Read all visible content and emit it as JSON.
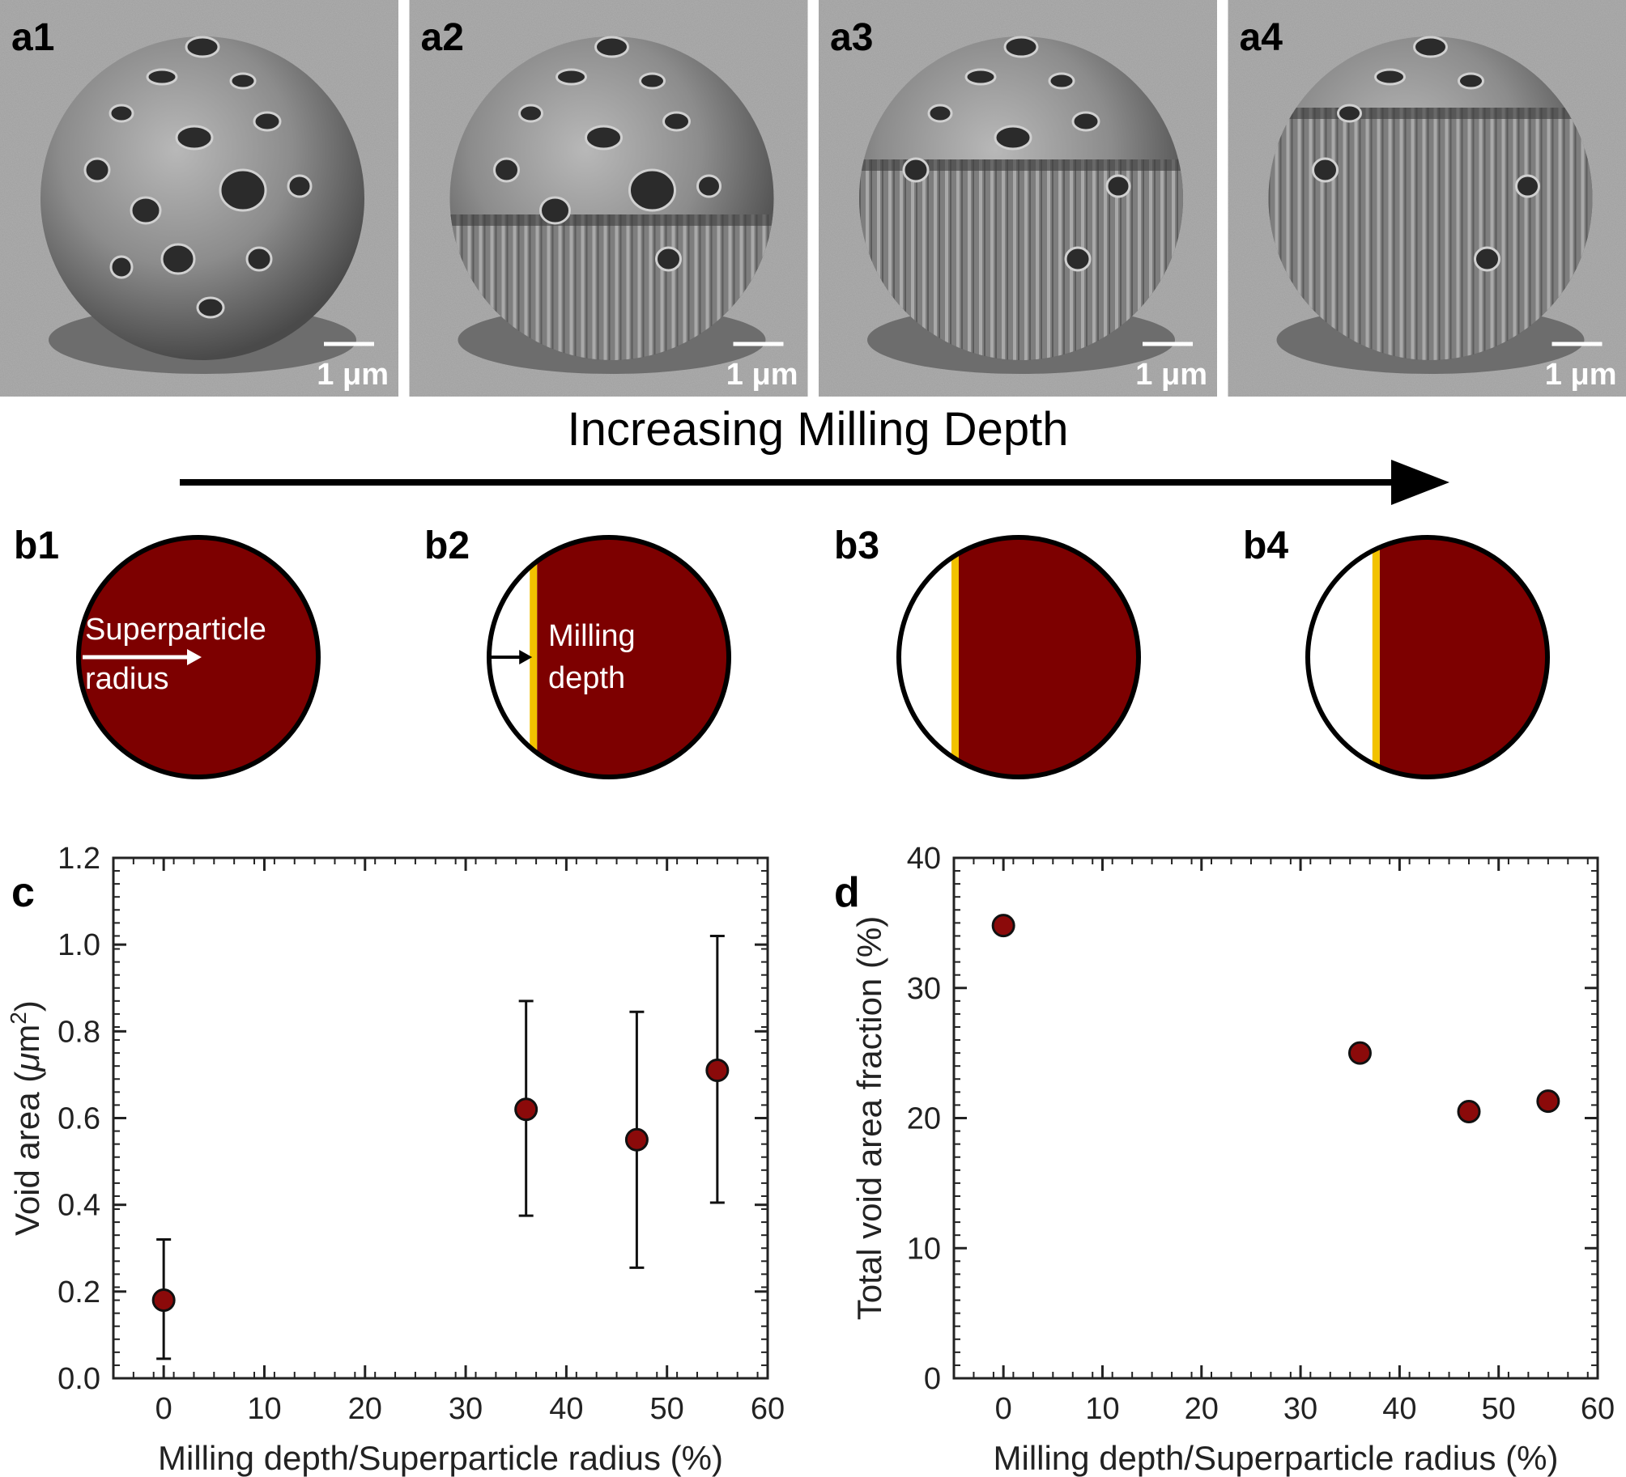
{
  "arrow_caption": "Increasing Milling Depth",
  "sem_panels": [
    {
      "label": "a1",
      "scale_bar": "1 μm"
    },
    {
      "label": "a2",
      "scale_bar": "1 μm"
    },
    {
      "label": "a3",
      "scale_bar": "1 μm"
    },
    {
      "label": "a4",
      "scale_bar": "1 μm"
    }
  ],
  "schematics": {
    "labels": [
      "b1",
      "b2",
      "b3",
      "b4"
    ],
    "superparticle_label_line1": "Superparticle",
    "superparticle_label_line2": "radius",
    "milling_label_line1": "Milling",
    "milling_label_line2": "depth",
    "milled_fractions": [
      0,
      0.2,
      0.25,
      0.3
    ]
  },
  "colors": {
    "particle": "#7d0000",
    "surface_line": "#f2c200",
    "marker": "#8b0a0a",
    "axis": "#222222"
  },
  "chart_data": [
    {
      "panel": "c",
      "type": "scatter",
      "xlabel": "Milling depth/Superparticle radius (%)",
      "ylabel_main": "Void area (",
      "ylabel_unit_mu": "μ",
      "ylabel_unit_m": "m",
      "ylabel_unit_exp": "2",
      "ylabel_close": ")",
      "xlim": [
        -5,
        60
      ],
      "ylim": [
        0,
        1.2
      ],
      "xticks": [
        0,
        10,
        20,
        30,
        40,
        50,
        60
      ],
      "xtick_labels": [
        "0",
        "10",
        "20",
        "30",
        "40",
        "50",
        "60"
      ],
      "yticks": [
        0.0,
        0.2,
        0.4,
        0.6,
        0.8,
        1.0,
        1.2
      ],
      "ytick_labels": [
        "0.0",
        "0.2",
        "0.4",
        "0.6",
        "0.8",
        "1.0",
        "1.2"
      ],
      "points": [
        {
          "x": 0,
          "y": 0.18,
          "err_low": 0.045,
          "err_high": 0.32
        },
        {
          "x": 36,
          "y": 0.62,
          "err_low": 0.375,
          "err_high": 0.87
        },
        {
          "x": 47,
          "y": 0.55,
          "err_low": 0.255,
          "err_high": 0.845
        },
        {
          "x": 55,
          "y": 0.71,
          "err_low": 0.405,
          "err_high": 1.02
        }
      ]
    },
    {
      "panel": "d",
      "type": "scatter",
      "xlabel": "Milling depth/Superparticle radius (%)",
      "ylabel": "Total void area fraction (%)",
      "xlim": [
        -5,
        60
      ],
      "ylim": [
        0,
        40
      ],
      "xticks": [
        0,
        10,
        20,
        30,
        40,
        50,
        60
      ],
      "xtick_labels": [
        "0",
        "10",
        "20",
        "30",
        "40",
        "50",
        "60"
      ],
      "yticks": [
        0,
        10,
        20,
        30,
        40
      ],
      "ytick_labels": [
        "0",
        "10",
        "20",
        "30",
        "40"
      ],
      "points": [
        {
          "x": 0,
          "y": 34.8
        },
        {
          "x": 36,
          "y": 25.0
        },
        {
          "x": 47,
          "y": 20.5
        },
        {
          "x": 55,
          "y": 21.3
        }
      ]
    }
  ]
}
